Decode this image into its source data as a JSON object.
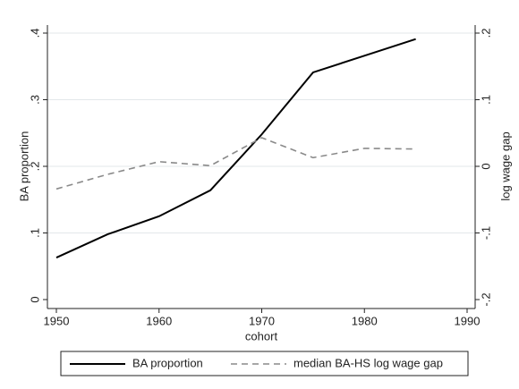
{
  "chart_data": {
    "type": "line",
    "x_label": "cohort",
    "y_label": "BA proportion",
    "y2_label": "log wage gap",
    "x": [
      1950,
      1955,
      1960,
      1965,
      1970,
      1975,
      1980,
      1985
    ],
    "series": [
      {
        "name": "BA proportion",
        "color": "#000000",
        "dash": "solid",
        "values": [
          0.063,
          0.098,
          0.125,
          0.164,
          0.248,
          0.341,
          0.366,
          0.391
        ]
      },
      {
        "name": "median BA-HS log wage gap",
        "color": "#8a8a8a",
        "dash": "dashed",
        "axis": "y2",
        "values": [
          -0.034,
          -0.012,
          0.007,
          0.001,
          0.043,
          0.013,
          0.027,
          0.026
        ]
      }
    ],
    "xlim": [
      1950,
      1990
    ],
    "xticks": [
      1950,
      1960,
      1970,
      1980,
      1990
    ],
    "ylim": [
      0,
      0.4
    ],
    "yticks": [
      0,
      {
        "value": 0.1,
        "label": ".1"
      },
      {
        "value": 0.2,
        "label": ".2"
      },
      {
        "value": 0.3,
        "label": ".3"
      },
      {
        "value": 0.4,
        "label": ".4"
      }
    ],
    "y2lim": [
      -0.2,
      0.2
    ],
    "y2ticks": [
      {
        "value": -0.2,
        "label": "-.2"
      },
      {
        "value": -0.1,
        "label": "-.1"
      },
      0,
      {
        "value": 0.1,
        "label": ".1"
      },
      {
        "value": 0.2,
        "label": ".2"
      }
    ],
    "grid": true,
    "legend": "bottom"
  }
}
